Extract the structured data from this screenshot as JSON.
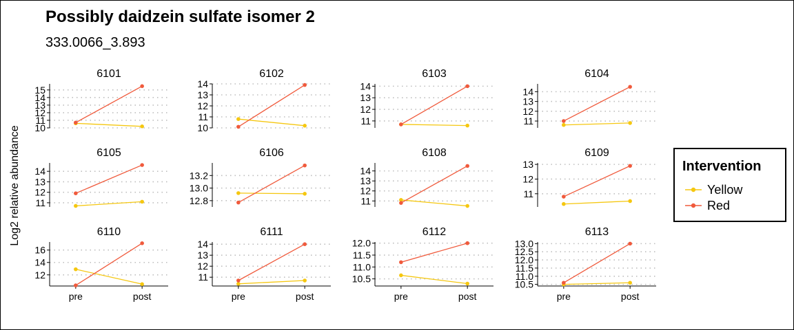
{
  "title": "Possibly daidzein sulfate isomer 2",
  "subtitle": "333.0066_3.893",
  "ylabel": "Log2 relative abundance",
  "legend": {
    "title": "Intervention",
    "items": [
      {
        "label": "Yellow",
        "color": "#F5C710"
      },
      {
        "label": "Red",
        "color": "#F05A3C"
      }
    ]
  },
  "chart_data": {
    "type": "line",
    "categories": [
      "pre",
      "post"
    ],
    "grid": "horizontal dotted",
    "legend_position": "right",
    "panels": [
      {
        "id": "6101",
        "ylim": [
          10,
          15.8
        ],
        "yticks": [
          "10",
          "11",
          "12",
          "13",
          "14",
          "15"
        ],
        "series": [
          {
            "name": "Yellow",
            "values": [
              10.6,
              10.2
            ]
          },
          {
            "name": "Red",
            "values": [
              10.7,
              15.5
            ]
          }
        ]
      },
      {
        "id": "6102",
        "ylim": [
          10,
          14
        ],
        "yticks": [
          "10",
          "11",
          "12",
          "13",
          "14"
        ],
        "series": [
          {
            "name": "Yellow",
            "values": [
              10.8,
              10.2
            ]
          },
          {
            "name": "Red",
            "values": [
              10.1,
              13.9
            ]
          }
        ]
      },
      {
        "id": "6103",
        "ylim": [
          10.4,
          14.2
        ],
        "yticks": [
          "11",
          "12",
          "13",
          "14"
        ],
        "series": [
          {
            "name": "Yellow",
            "values": [
              10.7,
              10.6
            ]
          },
          {
            "name": "Red",
            "values": [
              10.7,
              14.0
            ]
          }
        ]
      },
      {
        "id": "6104",
        "ylim": [
          10.3,
          14.8
        ],
        "yticks": [
          "11",
          "12",
          "13",
          "14"
        ],
        "series": [
          {
            "name": "Yellow",
            "values": [
              10.6,
              10.8
            ]
          },
          {
            "name": "Red",
            "values": [
              11.0,
              14.5
            ]
          }
        ]
      },
      {
        "id": "6105",
        "ylim": [
          10.6,
          14.8
        ],
        "yticks": [
          "11",
          "12",
          "13",
          "14"
        ],
        "series": [
          {
            "name": "Yellow",
            "values": [
              10.7,
              11.1
            ]
          },
          {
            "name": "Red",
            "values": [
              11.9,
              14.6
            ]
          }
        ]
      },
      {
        "id": "6106",
        "ylim": [
          12.7,
          13.4
        ],
        "yticks": [
          "12.8",
          "13.0",
          "13.2"
        ],
        "series": [
          {
            "name": "Yellow",
            "values": [
              12.92,
              12.91
            ]
          },
          {
            "name": "Red",
            "values": [
              12.77,
              13.36
            ]
          }
        ]
      },
      {
        "id": "6108",
        "ylim": [
          10.4,
          14.8
        ],
        "yticks": [
          "11",
          "12",
          "13",
          "14"
        ],
        "series": [
          {
            "name": "Yellow",
            "values": [
              11.1,
              10.5
            ]
          },
          {
            "name": "Red",
            "values": [
              10.8,
              14.5
            ]
          }
        ]
      },
      {
        "id": "6109",
        "ylim": [
          10.1,
          13.1
        ],
        "yticks": [
          "11",
          "12",
          "13"
        ],
        "series": [
          {
            "name": "Yellow",
            "values": [
              10.3,
              10.5
            ]
          },
          {
            "name": "Red",
            "values": [
              10.8,
              12.9
            ]
          }
        ]
      },
      {
        "id": "6110",
        "ylim": [
          10.2,
          17.3
        ],
        "yticks": [
          "12",
          "14",
          "16"
        ],
        "series": [
          {
            "name": "Yellow",
            "values": [
              12.9,
              10.5
            ]
          },
          {
            "name": "Red",
            "values": [
              10.3,
              17.1
            ]
          }
        ]
      },
      {
        "id": "6111",
        "ylim": [
          10.2,
          14.2
        ],
        "yticks": [
          "11",
          "12",
          "13",
          "14"
        ],
        "series": [
          {
            "name": "Yellow",
            "values": [
              10.4,
              10.7
            ]
          },
          {
            "name": "Red",
            "values": [
              10.7,
              14.0
            ]
          }
        ]
      },
      {
        "id": "6112",
        "ylim": [
          10.2,
          12.05
        ],
        "yticks": [
          "10.5",
          "11.0",
          "11.5",
          "12.0"
        ],
        "series": [
          {
            "name": "Yellow",
            "values": [
              10.65,
              10.3
            ]
          },
          {
            "name": "Red",
            "values": [
              11.2,
              12.0
            ]
          }
        ]
      },
      {
        "id": "6113",
        "ylim": [
          10.4,
          13.1
        ],
        "yticks": [
          "10.5",
          "11.0",
          "11.5",
          "12.0",
          "12.5",
          "13.0"
        ],
        "series": [
          {
            "name": "Yellow",
            "values": [
              10.5,
              10.6
            ]
          },
          {
            "name": "Red",
            "values": [
              10.6,
              13.0
            ]
          }
        ]
      }
    ]
  }
}
